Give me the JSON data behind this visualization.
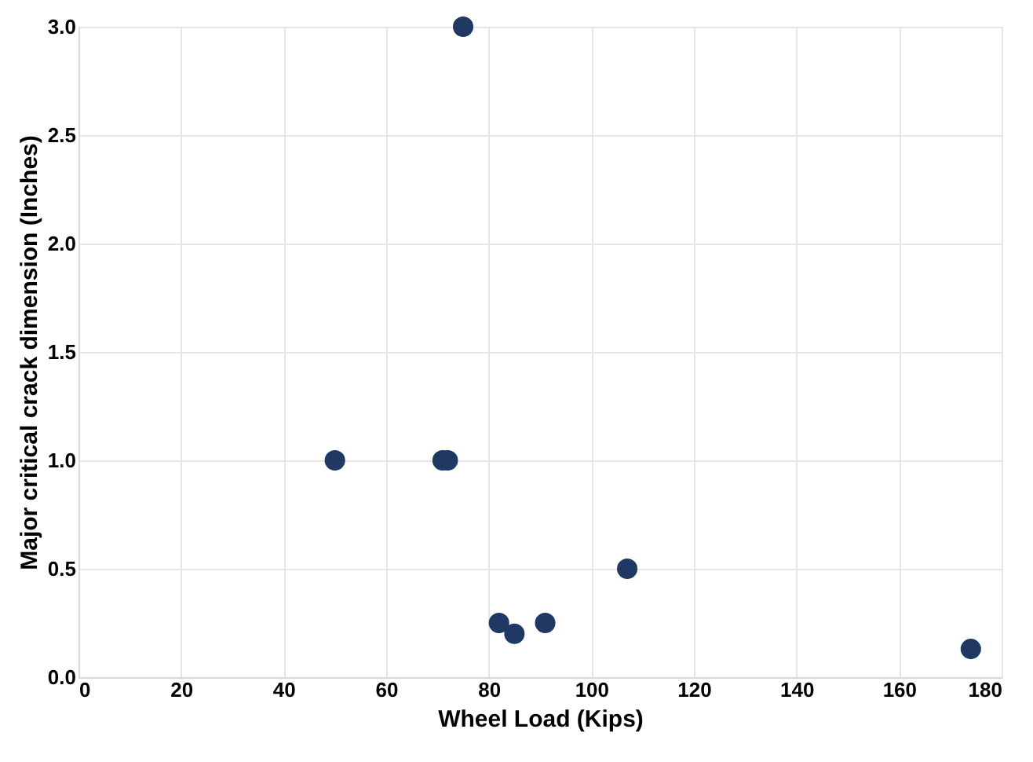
{
  "chart_data": {
    "type": "scatter",
    "xlabel": "Wheel Load (Kips)",
    "ylabel": "Major critical crack dimension (Inches)",
    "x": [
      50,
      71,
      72,
      75,
      82,
      85,
      91,
      107,
      174
    ],
    "series": [
      {
        "color": "#1f3864",
        "values": [
          1.0,
          1.0,
          1.0,
          3.0,
          0.25,
          0.2,
          0.25,
          0.5,
          0.13
        ]
      }
    ],
    "xlim": [
      0,
      180
    ],
    "xticks": [
      0,
      20,
      40,
      60,
      80,
      100,
      120,
      140,
      160,
      180
    ],
    "ylim": [
      0,
      3.0
    ],
    "yticks": [
      {
        "value": 0,
        "label": "0.0"
      },
      {
        "value": 0.5,
        "label": "0.5"
      },
      {
        "value": 1,
        "label": "1.0"
      },
      {
        "value": 1.5,
        "label": "1.5"
      },
      {
        "value": 2,
        "label": "2.0"
      },
      {
        "value": 2.5,
        "label": "2.5"
      },
      {
        "value": 3,
        "label": "3.0"
      }
    ],
    "grid": true,
    "marker": "circle"
  }
}
